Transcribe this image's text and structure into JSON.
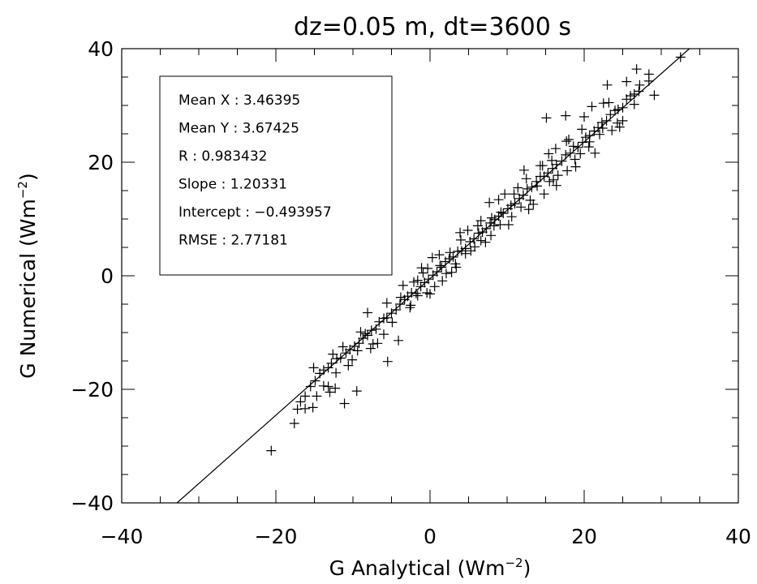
{
  "chart_data": {
    "type": "scatter",
    "title": "dz=0.05 m, dt=3600 s",
    "xlabel": {
      "prefix": "G Analytical (Wm",
      "sup": "−2",
      "suffix": ")"
    },
    "ylabel": {
      "prefix": "G Numerical (Wm",
      "sup": "−2",
      "suffix": ")"
    },
    "xlim": [
      -40,
      40
    ],
    "ylim": [
      -40,
      40
    ],
    "x_ticks": [
      -40,
      -20,
      0,
      20,
      40
    ],
    "y_ticks": [
      -40,
      -20,
      0,
      20,
      40
    ],
    "x_tick_labels": [
      "−40",
      "−20",
      "0",
      "20",
      "40"
    ],
    "y_tick_labels": [
      "−40",
      "−20",
      "0",
      "20",
      "40"
    ],
    "marker": "plus",
    "marker_color": "#000000",
    "fit_line": {
      "slope": 1.20331,
      "intercept": -0.493957
    },
    "stats": [
      "Mean X : 3.46395",
      "Mean Y : 3.67425",
      "R : 0.983432",
      "Slope : 1.20331",
      "Intercept : −0.493957",
      "RMSE : 2.77181"
    ],
    "grid": false,
    "points": [
      [
        -20.6,
        -30.8
      ],
      [
        -17.6,
        -26
      ],
      [
        -17.2,
        -23.5
      ],
      [
        -16.8,
        -22.2
      ],
      [
        -16.2,
        -21.2
      ],
      [
        -15.5,
        -19.5
      ],
      [
        -14.9,
        -18.5
      ],
      [
        -14.3,
        -17.2
      ],
      [
        -13.8,
        -16.6
      ],
      [
        -13.2,
        -16.2
      ],
      [
        -12.8,
        -15.4
      ],
      [
        -12.1,
        -14.6
      ],
      [
        -11.6,
        -14.5
      ],
      [
        -11.1,
        -22.5
      ],
      [
        -10.9,
        -13.6
      ],
      [
        -10.4,
        -13
      ],
      [
        -9.8,
        -12.4
      ],
      [
        -9.5,
        -20.3
      ],
      [
        -9.2,
        -11.9
      ],
      [
        -8.7,
        -11
      ],
      [
        -8.1,
        -10.5
      ],
      [
        -7.6,
        -9.6
      ],
      [
        -7,
        -9.4
      ],
      [
        -6.6,
        -8.1
      ],
      [
        -6,
        -7.5
      ],
      [
        -5.6,
        -7.4
      ],
      [
        -5,
        -6.6
      ],
      [
        -4.4,
        -6
      ],
      [
        -3.9,
        -5
      ],
      [
        -3.3,
        -4.2
      ],
      [
        -2.9,
        -3.6
      ],
      [
        -2.4,
        -3
      ],
      [
        -1.8,
        -3.1
      ],
      [
        -1.2,
        -1.9
      ],
      [
        -0.7,
        -1.2
      ],
      [
        -0.2,
        -0.6
      ],
      [
        0.4,
        0.1
      ],
      [
        0.9,
        0.7
      ],
      [
        1.5,
        1.5
      ],
      [
        2,
        2.5
      ],
      [
        2.5,
        3
      ],
      [
        3,
        3.3
      ],
      [
        3.6,
        4.3
      ],
      [
        4.1,
        4.4
      ],
      [
        4.6,
        4.8
      ],
      [
        5.2,
        6
      ],
      [
        5.7,
        6.5
      ],
      [
        6.3,
        7.5
      ],
      [
        6.8,
        7.7
      ],
      [
        7.3,
        8.3
      ],
      [
        7.8,
        9.3
      ],
      [
        8.4,
        9.9
      ],
      [
        8.9,
        10.5
      ],
      [
        9.5,
        11
      ],
      [
        10.1,
        11.8
      ],
      [
        10.5,
        12.4
      ],
      [
        11,
        12.7
      ],
      [
        11.6,
        13.6
      ],
      [
        12.1,
        14.2
      ],
      [
        12.6,
        15.3
      ],
      [
        13.2,
        15.6
      ],
      [
        13.8,
        16.6
      ],
      [
        14.3,
        17.5
      ],
      [
        14.8,
        17.5
      ],
      [
        15.3,
        18.1
      ],
      [
        15.9,
        18.9
      ],
      [
        16.4,
        19.6
      ],
      [
        17.1,
        20.2
      ],
      [
        17.6,
        21.3
      ],
      [
        18.2,
        21.6
      ],
      [
        18.6,
        22.8
      ],
      [
        19.2,
        22.6
      ],
      [
        19.8,
        23.5
      ],
      [
        20.2,
        24.4
      ],
      [
        20.7,
        24.7
      ],
      [
        21.3,
        25.5
      ],
      [
        21.8,
        26.1
      ],
      [
        22.3,
        27
      ],
      [
        22.9,
        27.3
      ],
      [
        23.4,
        28.4
      ],
      [
        24,
        29.1
      ],
      [
        24.4,
        29.3
      ],
      [
        25,
        29.6
      ],
      [
        25.5,
        31.1
      ],
      [
        26,
        31.7
      ],
      [
        26.5,
        32
      ],
      [
        27.1,
        32.5
      ],
      [
        26.8,
        36.4
      ],
      [
        28.4,
        35.5
      ],
      [
        29.1,
        31.8
      ],
      [
        32.5,
        38.5
      ],
      [
        23,
        33.6
      ],
      [
        20,
        28
      ],
      [
        21,
        29.8
      ],
      [
        22.5,
        30.4
      ],
      [
        25.5,
        34.2
      ],
      [
        -4.1,
        -11.4
      ],
      [
        -5.5,
        -15.1
      ],
      [
        -10.1,
        -14.8
      ],
      [
        -13.2,
        -19.5
      ],
      [
        -13.8,
        -19.4
      ],
      [
        -14.7,
        -21.2
      ],
      [
        -1.6,
        -3.5
      ],
      [
        -2.1,
        -1.1
      ],
      [
        -1.6,
        -0.8
      ],
      [
        0.6,
        -1.9
      ],
      [
        1.2,
        3.7
      ],
      [
        3.4,
        1.5
      ],
      [
        4.6,
        3.9
      ],
      [
        6.6,
        9.7
      ],
      [
        7.9,
        7.1
      ],
      [
        9.2,
        11.2
      ],
      [
        10.6,
        10.4
      ],
      [
        12.5,
        17.1
      ],
      [
        13,
        13.3
      ],
      [
        14.6,
        19.4
      ],
      [
        16.4,
        15.9
      ],
      [
        17.7,
        23.7
      ],
      [
        18.8,
        20.5
      ],
      [
        -0.3,
        1.3
      ],
      [
        1.6,
        -0.9
      ],
      [
        7.7,
        12.9
      ],
      [
        15.4,
        21.5
      ],
      [
        -8.1,
        -6.5
      ],
      [
        -6,
        -10.3
      ],
      [
        -1.1,
        1.4
      ],
      [
        3.9,
        7.6
      ],
      [
        10.2,
        9
      ],
      [
        17.8,
        18.5
      ],
      [
        -11.3,
        -12.5
      ],
      [
        -7.4,
        -12
      ],
      [
        2.6,
        4.1
      ],
      [
        5.3,
        4.4
      ],
      [
        8.9,
        13.4
      ],
      [
        14.8,
        14.4
      ],
      [
        19.7,
        25.8
      ],
      [
        21.4,
        21.6
      ],
      [
        -15.1,
        -16.2
      ],
      [
        -12.2,
        -17.1
      ],
      [
        -3.5,
        -1.7
      ],
      [
        0.3,
        3.2
      ],
      [
        6.6,
        6.2
      ],
      [
        11.4,
        15.5
      ],
      [
        13.4,
        12.6
      ],
      [
        16.3,
        22.4
      ],
      [
        20.7,
        23.6
      ],
      [
        24.6,
        26.2
      ],
      [
        -9,
        -9.9
      ],
      [
        -4.9,
        -8.2
      ],
      [
        2.1,
        0.4
      ],
      [
        9.7,
        14.4
      ],
      [
        -13,
        -20.5
      ],
      [
        -15.2,
        -23.2
      ],
      [
        15.1,
        27.8
      ],
      [
        17.6,
        28.2
      ],
      [
        24.3,
        26.9
      ],
      [
        23.2,
        30.5
      ],
      [
        12.2,
        18.6
      ],
      [
        5.8,
        5.1
      ],
      [
        -6.8,
        -11.9
      ],
      [
        -2.6,
        -5.6
      ],
      [
        -0.9,
        0.5
      ],
      [
        4,
        6.3
      ],
      [
        8.3,
        8.8
      ],
      [
        11.8,
        12.1
      ],
      [
        16,
        16.9
      ],
      [
        19.5,
        21.5
      ],
      [
        22,
        24.9
      ],
      [
        -10.6,
        -15.8
      ],
      [
        -8.4,
        -10.2
      ],
      [
        0,
        -3.2
      ],
      [
        6.2,
        8.8
      ],
      [
        13.9,
        15.8
      ],
      [
        -12.6,
        -13.8
      ],
      [
        -16.2,
        -23.4
      ],
      [
        -5.6,
        -4.8
      ],
      [
        2.8,
        0.6
      ],
      [
        8,
        10.2
      ],
      [
        15.8,
        20.3
      ],
      [
        -12.3,
        -19.8
      ],
      [
        -9.4,
        -13.2
      ],
      [
        -7.7,
        -12.8
      ],
      [
        -3.8,
        -3.8
      ],
      [
        -2.5,
        -5.2
      ],
      [
        -0.4,
        -3
      ],
      [
        1.3,
        1.8
      ],
      [
        3.3,
        2.1
      ],
      [
        4.9,
        8
      ],
      [
        7.2,
        5.9
      ],
      [
        9.1,
        9
      ],
      [
        10.9,
        14.4
      ],
      [
        12.8,
        11.7
      ],
      [
        14.3,
        19.4
      ],
      [
        15.5,
        16.6
      ],
      [
        16.6,
        17.7
      ],
      [
        18,
        24
      ],
      [
        18.9,
        19.2
      ],
      [
        20.6,
        22.7
      ],
      [
        22.4,
        26
      ],
      [
        23.6,
        25.6
      ],
      [
        25,
        27.3
      ],
      [
        26.5,
        30.2
      ],
      [
        27.2,
        33.6
      ],
      [
        28.4,
        34.3
      ]
    ]
  }
}
